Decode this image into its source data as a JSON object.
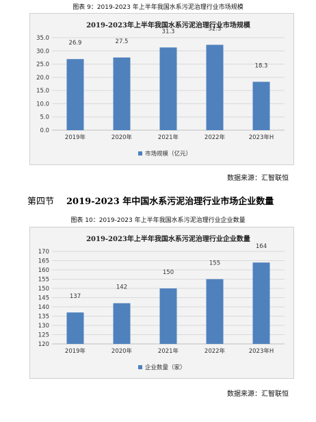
{
  "figure1": {
    "caption": "图表 9：2019-2023 年上半年我国水系污泥治理行业市场规模",
    "source": "数据来源：汇智联恒"
  },
  "section": {
    "number": "第四节",
    "title": "2019-2023 年中国水系污泥治理行业市场企业数量"
  },
  "figure2": {
    "caption": "图表 10：2019-2023 年上半年我国水系污泥治理行业企业数量",
    "source": "数据来源：汇智联恒"
  },
  "colors": {
    "bar": "#4f81bd",
    "grid": "#d9d9d9",
    "plot_bg": "#f3f3f3"
  },
  "chart_data": [
    {
      "type": "bar",
      "title": "2019-2023年上半年我国水系污泥治理行业市场规模",
      "categories": [
        "2019年",
        "2020年",
        "2021年",
        "2022年",
        "2023年H"
      ],
      "series": [
        {
          "name": "市场规模（亿元）",
          "values": [
            26.9,
            27.5,
            31.3,
            32.3,
            18.3
          ]
        }
      ],
      "value_labels": [
        "26.9",
        "27.5",
        "31.3",
        "32.3",
        "18.3"
      ],
      "ylim": [
        0,
        35
      ],
      "yticks": [
        "0.0",
        "5.0",
        "10.0",
        "15.0",
        "20.0",
        "25.0",
        "30.0",
        "35.0"
      ],
      "ytick_values": [
        0,
        5,
        10,
        15,
        20,
        25,
        30,
        35
      ],
      "grid": true,
      "legend_position": "bottom"
    },
    {
      "type": "bar",
      "title": "2019-2023年上半年我国水系污泥治理行业企业数量",
      "categories": [
        "2019年",
        "2020年",
        "2021年",
        "2022年",
        "2023年H"
      ],
      "series": [
        {
          "name": "企业数量（家）",
          "values": [
            137,
            142,
            150,
            155,
            164
          ]
        }
      ],
      "value_labels": [
        "137",
        "142",
        "150",
        "155",
        "164"
      ],
      "ylim": [
        120,
        170
      ],
      "yticks": [
        "120",
        "125",
        "130",
        "135",
        "140",
        "145",
        "150",
        "155",
        "160",
        "165",
        "170"
      ],
      "ytick_values": [
        120,
        125,
        130,
        135,
        140,
        145,
        150,
        155,
        160,
        165,
        170
      ],
      "grid": true,
      "legend_position": "bottom"
    }
  ]
}
